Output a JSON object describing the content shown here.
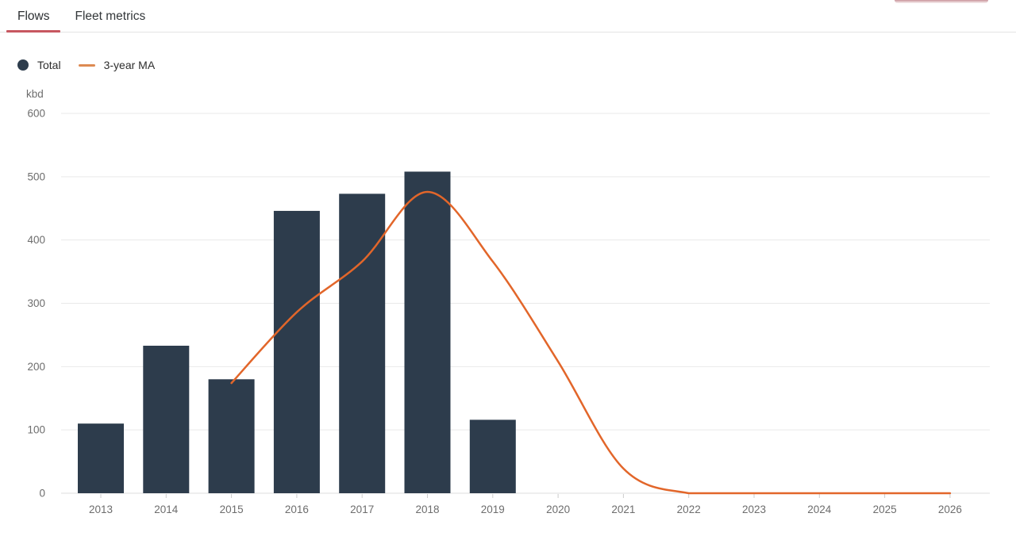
{
  "tabs": {
    "flows_label": "Flows",
    "fleet_metrics_label": "Fleet metrics",
    "active_tab": "Flows"
  },
  "colors": {
    "bar": "#2d3c4c",
    "line": "#e2662a",
    "legend_dash": "#dd8a52",
    "active_tab_underline": "#c75760",
    "axis_text": "#6d6d6d",
    "grid": "#e9e9e9",
    "axis_line": "#dcdcdc",
    "tick": "#cccccc"
  },
  "chart_data": {
    "type": "bar",
    "title": "",
    "ylabel": "kbd",
    "xlabel": "",
    "categories": [
      "2013",
      "2014",
      "2015",
      "2016",
      "2017",
      "2018",
      "2019",
      "2020",
      "2021",
      "2022",
      "2023",
      "2024",
      "2025",
      "2026"
    ],
    "series": [
      {
        "name": "Total",
        "type": "bar",
        "color": "#2d3c4c",
        "values": [
          110,
          233,
          180,
          446,
          473,
          508,
          116,
          null,
          null,
          null,
          null,
          null,
          null,
          null
        ]
      },
      {
        "name": "3-year MA",
        "type": "line",
        "color": "#e2662a",
        "values": [
          null,
          null,
          174,
          286,
          366,
          476,
          366,
          208,
          39,
          0,
          0,
          0,
          0,
          0
        ]
      }
    ],
    "ylim": [
      0,
      600
    ],
    "ytick_step": 100,
    "grid": true,
    "legend_position": "top-left"
  }
}
